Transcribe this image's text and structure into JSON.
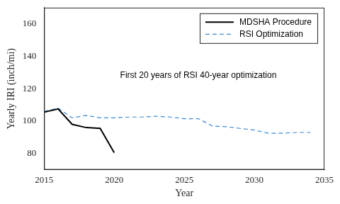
{
  "chart_data": {
    "type": "line",
    "x_label": "Year",
    "y_label": "Yearly IRI (inch/mi)",
    "annotation": "First 20 years of RSI 40-year optimization",
    "xlim": [
      2015,
      2035
    ],
    "xticks": [
      2015,
      2020,
      2025,
      2030,
      2035
    ],
    "ylim": [
      70,
      170
    ],
    "yticks": [
      80,
      100,
      120,
      140,
      160
    ],
    "grid": false,
    "legend": "upper right",
    "series": [
      {
        "name": "MDSHA Procedure",
        "color": "#000000",
        "line_style": "solid",
        "x": [
          2015,
          2016,
          2017,
          2018,
          2019,
          2020
        ],
        "values": [
          105.5,
          107.5,
          98,
          96,
          95.5,
          80.5
        ]
      },
      {
        "name": "RSI Optimization",
        "color": "#3a8ad6",
        "line_style": "dashed",
        "x": [
          2015,
          2016,
          2017,
          2018,
          2019,
          2020,
          2021,
          2022,
          2023,
          2024,
          2025,
          2026,
          2027,
          2028,
          2029,
          2030,
          2031,
          2032,
          2033,
          2034
        ],
        "values": [
          106,
          108,
          102,
          103.5,
          102,
          102,
          102.5,
          102.5,
          103,
          102.5,
          101.5,
          101.5,
          97,
          96.5,
          95.5,
          94.5,
          92.5,
          92.5,
          93,
          93
        ]
      }
    ]
  }
}
